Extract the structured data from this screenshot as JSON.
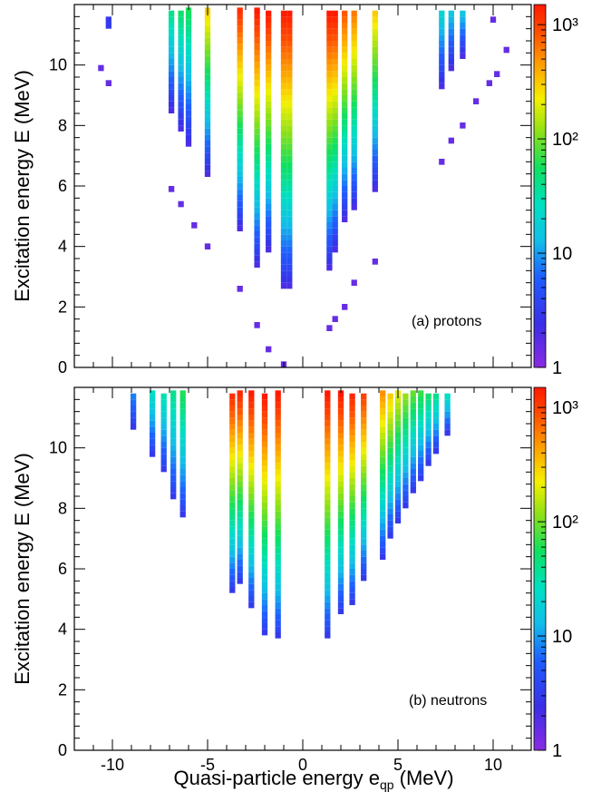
{
  "chart_data": [
    {
      "type": "heatmap",
      "panel_label": "(a) protons",
      "xlabel": "Quasi-particle energy e_qp (MeV)",
      "ylabel": "Excitation energy E (MeV)",
      "xlim": [
        -12,
        12
      ],
      "ylim": [
        0,
        12
      ],
      "xticks": [
        -10,
        -5,
        0,
        5,
        10
      ],
      "xticklabels": [
        "-10",
        "-5",
        "0",
        "5",
        "10"
      ],
      "yticks": [
        0,
        2,
        4,
        6,
        8,
        10
      ],
      "yticklabels": [
        "0",
        "2",
        "4",
        "6",
        "8",
        "10"
      ],
      "colorbar": {
        "scale": "log",
        "range": [
          1,
          1500
        ],
        "ticklabels": [
          "1",
          "10",
          "10²",
          "10³"
        ]
      },
      "cell_size": {
        "x": 0.3,
        "y": 0.2
      },
      "columns": [
        {
          "x": -10.2,
          "ymin": 11.2,
          "ymax": 11.6,
          "c_low": 3,
          "c_high": 3
        },
        {
          "x": -6.9,
          "ymin": 8.4,
          "ymax": 11.8,
          "c_low": 2,
          "c_high": 40
        },
        {
          "x": -6.4,
          "ymin": 7.8,
          "ymax": 11.8,
          "c_low": 2,
          "c_high": 50
        },
        {
          "x": -6.0,
          "ymin": 7.3,
          "ymax": 11.8,
          "c_low": 2,
          "c_high": 60
        },
        {
          "x": -5.0,
          "ymin": 6.3,
          "ymax": 11.8,
          "c_low": 2,
          "c_high": 300
        },
        {
          "x": -3.3,
          "ymin": 4.5,
          "ymax": 11.8,
          "c_low": 2,
          "c_high": 1200
        },
        {
          "x": -2.4,
          "ymin": 3.3,
          "ymax": 11.8,
          "c_low": 2,
          "c_high": 1500
        },
        {
          "x": -1.8,
          "ymin": 3.8,
          "ymax": 11.8,
          "c_low": 2,
          "c_high": 1500
        },
        {
          "x": -1.0,
          "ymin": 2.6,
          "ymax": 11.8,
          "c_low": 2,
          "c_high": 1500
        },
        {
          "x": -0.7,
          "ymin": 2.6,
          "ymax": 11.8,
          "c_low": 2,
          "c_high": 1500
        },
        {
          "x": 1.4,
          "ymin": 3.2,
          "ymax": 11.8,
          "c_low": 2,
          "c_high": 1500
        },
        {
          "x": 1.7,
          "ymin": 3.8,
          "ymax": 11.8,
          "c_low": 2,
          "c_high": 1500
        },
        {
          "x": 2.2,
          "ymin": 4.8,
          "ymax": 11.8,
          "c_low": 2,
          "c_high": 800
        },
        {
          "x": 2.7,
          "ymin": 5.2,
          "ymax": 11.8,
          "c_low": 2,
          "c_high": 600
        },
        {
          "x": 3.8,
          "ymin": 5.8,
          "ymax": 11.8,
          "c_low": 2,
          "c_high": 300
        },
        {
          "x": 7.3,
          "ymin": 9.2,
          "ymax": 11.8,
          "c_low": 2,
          "c_high": 20
        },
        {
          "x": 7.8,
          "ymin": 9.8,
          "ymax": 11.8,
          "c_low": 2,
          "c_high": 15
        },
        {
          "x": 8.4,
          "ymin": 10.2,
          "ymax": 11.8,
          "c_low": 2,
          "c_high": 15
        }
      ],
      "points": [
        {
          "x": -10.6,
          "y": 9.9,
          "c": 1.5
        },
        {
          "x": -10.2,
          "y": 9.4,
          "c": 1.5
        },
        {
          "x": -6.9,
          "y": 5.9,
          "c": 1.5
        },
        {
          "x": -6.4,
          "y": 5.4,
          "c": 1.5
        },
        {
          "x": -5.7,
          "y": 4.7,
          "c": 1.5
        },
        {
          "x": -5.0,
          "y": 4.0,
          "c": 1.5
        },
        {
          "x": -3.3,
          "y": 2.6,
          "c": 1.5
        },
        {
          "x": -2.4,
          "y": 1.4,
          "c": 1.5
        },
        {
          "x": -1.8,
          "y": 0.6,
          "c": 1.5
        },
        {
          "x": -1.0,
          "y": 0.1,
          "c": 1.5
        },
        {
          "x": 1.4,
          "y": 1.3,
          "c": 1.5
        },
        {
          "x": 1.7,
          "y": 1.6,
          "c": 1.5
        },
        {
          "x": 2.2,
          "y": 2.0,
          "c": 1.5
        },
        {
          "x": 2.7,
          "y": 2.8,
          "c": 1.5
        },
        {
          "x": 3.8,
          "y": 3.5,
          "c": 1.5
        },
        {
          "x": 7.3,
          "y": 6.8,
          "c": 1.5
        },
        {
          "x": 7.8,
          "y": 7.5,
          "c": 1.5
        },
        {
          "x": 8.4,
          "y": 8.0,
          "c": 1.5
        },
        {
          "x": 9.1,
          "y": 8.8,
          "c": 1.5
        },
        {
          "x": 9.8,
          "y": 9.4,
          "c": 1.5
        },
        {
          "x": 10.2,
          "y": 9.7,
          "c": 1.5
        },
        {
          "x": 10.7,
          "y": 10.5,
          "c": 1.5
        },
        {
          "x": 10.0,
          "y": 11.5,
          "c": 1.5
        }
      ]
    },
    {
      "type": "heatmap",
      "panel_label": "(b) neutrons",
      "xlabel": "Quasi-particle energy e_qp (MeV)",
      "ylabel": "Excitation energy E (MeV)",
      "xlim": [
        -12,
        12
      ],
      "ylim": [
        0,
        12
      ],
      "xticks": [
        -10,
        -5,
        0,
        5,
        10
      ],
      "xticklabels": [
        "-10",
        "-5",
        "0",
        "5",
        "10"
      ],
      "yticks": [
        0,
        2,
        4,
        6,
        8,
        10
      ],
      "yticklabels": [
        "0",
        "2",
        "4",
        "6",
        "8",
        "10"
      ],
      "colorbar": {
        "scale": "log",
        "range": [
          1,
          1500
        ],
        "ticklabels": [
          "1",
          "10",
          "10²",
          "10³"
        ]
      },
      "cell_size": {
        "x": 0.3,
        "y": 0.2
      },
      "columns": [
        {
          "x": -8.9,
          "ymin": 10.6,
          "ymax": 11.8,
          "c_low": 3,
          "c_high": 8
        },
        {
          "x": -7.9,
          "ymin": 9.7,
          "ymax": 11.8,
          "c_low": 3,
          "c_high": 25
        },
        {
          "x": -7.3,
          "ymin": 9.2,
          "ymax": 11.8,
          "c_low": 3,
          "c_high": 30
        },
        {
          "x": -6.8,
          "ymin": 8.3,
          "ymax": 11.8,
          "c_low": 3,
          "c_high": 40
        },
        {
          "x": -6.3,
          "ymin": 7.7,
          "ymax": 11.8,
          "c_low": 3,
          "c_high": 60
        },
        {
          "x": -3.7,
          "ymin": 5.2,
          "ymax": 11.8,
          "c_low": 3,
          "c_high": 1200
        },
        {
          "x": -3.3,
          "ymin": 5.5,
          "ymax": 11.8,
          "c_low": 3,
          "c_high": 1300
        },
        {
          "x": -2.7,
          "ymin": 4.7,
          "ymax": 11.8,
          "c_low": 3,
          "c_high": 1500
        },
        {
          "x": -2.0,
          "ymin": 3.8,
          "ymax": 11.8,
          "c_low": 3,
          "c_high": 1500
        },
        {
          "x": -1.3,
          "ymin": 3.7,
          "ymax": 11.8,
          "c_low": 3,
          "c_high": 1500
        },
        {
          "x": 1.3,
          "ymin": 3.7,
          "ymax": 11.8,
          "c_low": 3,
          "c_high": 1500
        },
        {
          "x": 2.0,
          "ymin": 4.5,
          "ymax": 11.8,
          "c_low": 3,
          "c_high": 1500
        },
        {
          "x": 2.6,
          "ymin": 4.8,
          "ymax": 11.8,
          "c_low": 3,
          "c_high": 1300
        },
        {
          "x": 3.2,
          "ymin": 5.6,
          "ymax": 11.8,
          "c_low": 3,
          "c_high": 1000
        },
        {
          "x": 4.2,
          "ymin": 6.3,
          "ymax": 11.8,
          "c_low": 3,
          "c_high": 500
        },
        {
          "x": 4.6,
          "ymin": 7.0,
          "ymax": 11.8,
          "c_low": 3,
          "c_high": 300
        },
        {
          "x": 5.0,
          "ymin": 7.5,
          "ymax": 11.8,
          "c_low": 3,
          "c_high": 200
        },
        {
          "x": 5.4,
          "ymin": 8.0,
          "ymax": 11.8,
          "c_low": 3,
          "c_high": 120
        },
        {
          "x": 5.8,
          "ymin": 8.5,
          "ymax": 11.8,
          "c_low": 3,
          "c_high": 90
        },
        {
          "x": 6.2,
          "ymin": 8.9,
          "ymax": 11.8,
          "c_low": 3,
          "c_high": 70
        },
        {
          "x": 6.6,
          "ymin": 9.4,
          "ymax": 11.8,
          "c_low": 3,
          "c_high": 50
        },
        {
          "x": 7.0,
          "ymin": 9.8,
          "ymax": 11.8,
          "c_low": 3,
          "c_high": 40
        },
        {
          "x": 7.6,
          "ymin": 10.4,
          "ymax": 11.8,
          "c_low": 3,
          "c_high": 25
        }
      ],
      "points": []
    }
  ]
}
